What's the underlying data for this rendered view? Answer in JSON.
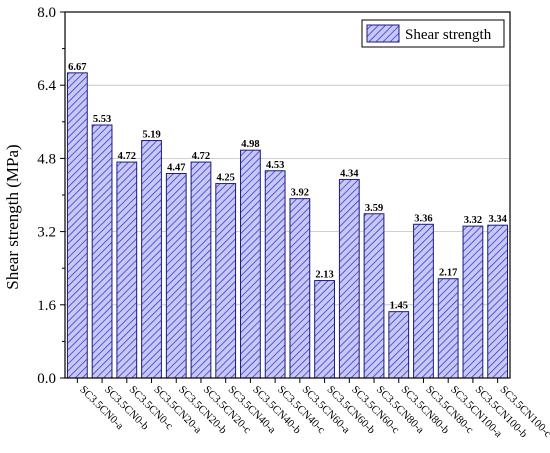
{
  "chart_data": {
    "type": "bar",
    "ylabel": "Shear strength (MPa)",
    "xlabel": "",
    "ylim": [
      0.0,
      8.0
    ],
    "yticks": [
      "0.0",
      "1.6",
      "3.2",
      "4.8",
      "6.4",
      "8.0"
    ],
    "grid": true,
    "legend": {
      "placement": "top-right",
      "entries": [
        "Shear strength"
      ]
    },
    "bar_pattern": "diagonal-hatch",
    "colors": {
      "bar_fill": "#c8c8f5",
      "bar_hatch": "#3a3ad0",
      "bar_stroke": "#1a1a80",
      "grid": "#c0c0c0",
      "axis": "#000000"
    },
    "categories": [
      "SC3.5CN0-a",
      "SC3.5CN0-b",
      "SC3.5CN0-c",
      "SC3.5CN20-a",
      "SC3.5CN20-b",
      "SC3.5CN20-c",
      "SC3.5CN40-a",
      "SC3.5CN40-b",
      "SC3.5CN40-c",
      "SC3.5CN60-a",
      "SC3.5CN60-b",
      "SC3.5CN60-c",
      "SC3.5CN80-a",
      "SC3.5CN80-b",
      "SC3.5CN80-c",
      "SC3.5CN100-a",
      "SC3.5CN100-b",
      "SC3.5CN100-c"
    ],
    "series": [
      {
        "name": "Shear strength",
        "values": [
          6.67,
          5.53,
          4.72,
          5.19,
          4.47,
          4.72,
          4.25,
          4.98,
          4.53,
          3.92,
          2.13,
          4.34,
          3.59,
          1.45,
          3.36,
          2.17,
          3.32,
          3.34
        ],
        "value_labels": [
          "6.67",
          "5.53",
          "4.72",
          "5.19",
          "4.47",
          "4.72",
          "4.25",
          "4.98",
          "4.53",
          "3.92",
          "2.13",
          "4.34",
          "3.59",
          "1.45",
          "3.36",
          "2.17",
          "3.32",
          "3.34"
        ]
      }
    ]
  }
}
